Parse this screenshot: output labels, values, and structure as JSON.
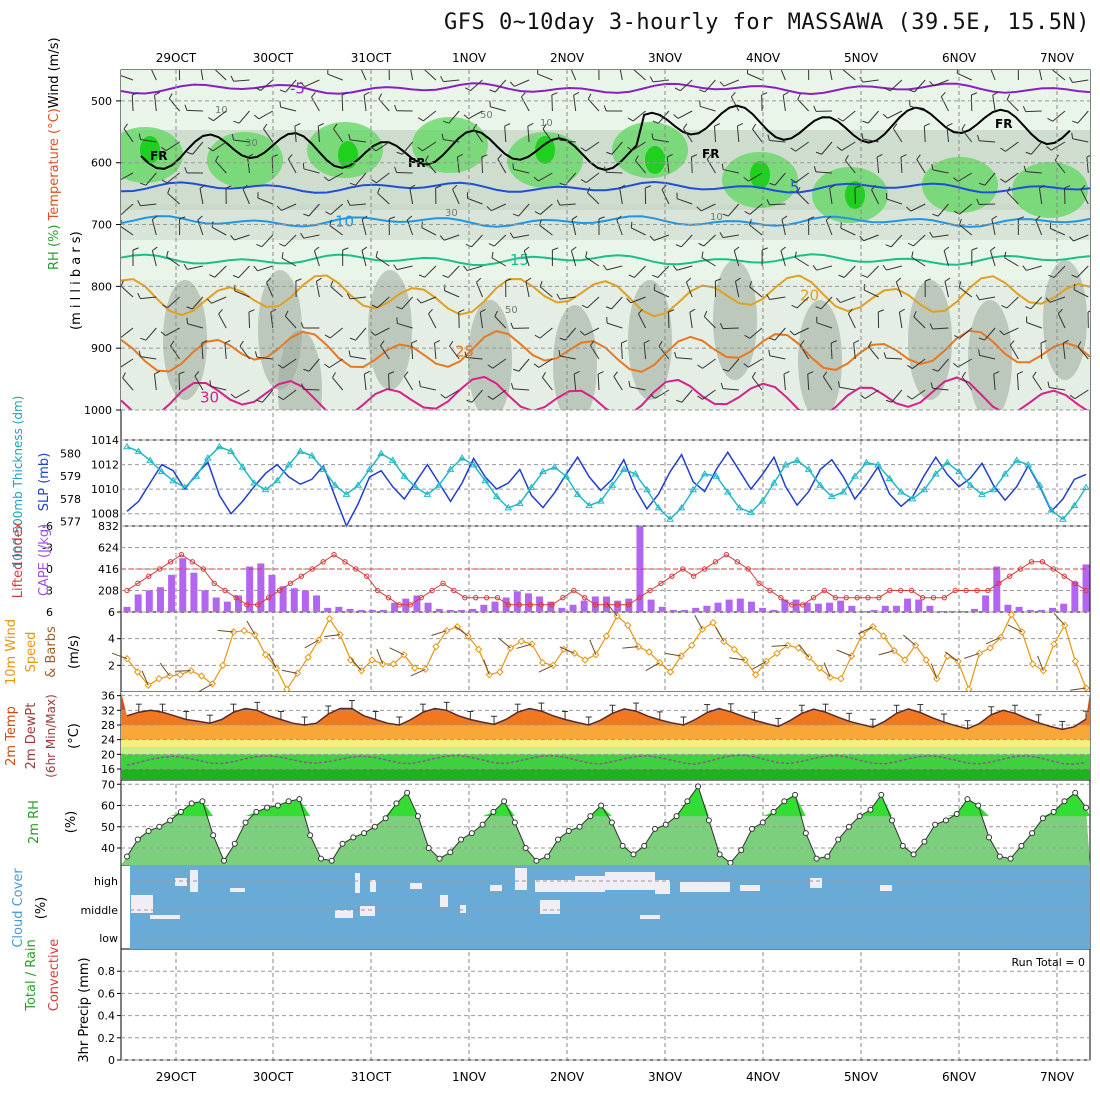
{
  "title": "GFS 0~10day 3-hourly for MASSAWA (39.5E, 15.5N)",
  "dates": [
    "29OCT",
    "30OCT",
    "31OCT",
    "1NOV",
    "2NOV",
    "3NOV",
    "4NOV",
    "5NOV",
    "6NOV",
    "7NOV"
  ],
  "colors": {
    "frame": "#000000",
    "grid": "#999999"
  },
  "chart_data": [
    {
      "type": "heatmap",
      "panel": "profile",
      "ylabel_parts": [
        "RH (%)",
        "Temperature (°C)",
        "Wind (m/s)"
      ],
      "ylabel_units": "(m i l l i b a r s)",
      "yticks": [
        500,
        600,
        700,
        800,
        900,
        1000
      ],
      "ylim": [
        450,
        1000
      ],
      "isotherms": [
        {
          "label": "-5",
          "level": 480,
          "color": "#8a1fc4"
        },
        {
          "label": "5",
          "level": 640,
          "color": "#1f4fd6"
        },
        {
          "label": "10",
          "level": 695,
          "color": "#2196e6"
        },
        {
          "label": "15",
          "level": 757,
          "color": "#1bbf8a"
        },
        {
          "label": "20",
          "level": 815,
          "color": "#e0a020"
        },
        {
          "label": "25",
          "level": 905,
          "color": "#e87820"
        },
        {
          "label": "30",
          "level": 980,
          "color": "#d6218a"
        }
      ],
      "freezing_label": "FR",
      "rh_labels": [
        "10",
        "30",
        "50"
      ]
    },
    {
      "type": "line",
      "panel": "slp_thickness",
      "ylabel_left": "1000-500mb Thickness (dm)",
      "ylabel_right": "SLP (mb)",
      "thickness_ticks": [
        577,
        578,
        579,
        580
      ],
      "slp_ticks": [
        1008,
        1010,
        1012,
        1014
      ],
      "series": [
        {
          "name": "SLP (mb)",
          "color": "#1f3fcf",
          "values": [
            1008.2,
            1009,
            1010.5,
            1012,
            1011.5,
            1010,
            1011.2,
            1012.2,
            1009.5,
            1008,
            1009,
            1010.2,
            1011.3,
            1012,
            1011,
            1010.4,
            1010.8,
            1011.9,
            1009.4,
            1007,
            1008.8,
            1011,
            1011.5,
            1010.2,
            1009.2,
            1010.6,
            1012,
            1010.5,
            1009,
            1010.5,
            1012.5,
            1011,
            1010,
            1010.5,
            1011.6,
            1009.5,
            1008.5,
            1009.7,
            1011.2,
            1012.6,
            1011,
            1009.9,
            1010.8,
            1012.4,
            1010,
            1008.4,
            1009.6,
            1011.4,
            1012.8,
            1010.6,
            1009.8,
            1011.6,
            1013,
            1011.5,
            1010,
            1011.2,
            1012.6,
            1010.2,
            1008.7,
            1009.8,
            1011.6,
            1012.4,
            1011,
            1009.2,
            1010.4,
            1011.8,
            1009.6,
            1008.6,
            1009.4,
            1011.1,
            1012.6,
            1011.2,
            1010.2,
            1010.9,
            1012.1,
            1010.3,
            1009.1,
            1010.2,
            1011.9,
            1010.2,
            1008.2,
            1009.2,
            1010.8,
            1011.2
          ]
        },
        {
          "name": "1000-500mb Thickness (dm)",
          "color": "#20b8c8",
          "axis": "thickness",
          "values": [
            580.3,
            580.1,
            579.7,
            579.2,
            578.8,
            578.5,
            579,
            579.8,
            580.3,
            580.1,
            579.4,
            578.7,
            578.4,
            578.8,
            579.5,
            580.1,
            579.9,
            579.3,
            578.6,
            578.2,
            578.6,
            579.3,
            580,
            579.7,
            579,
            578.5,
            578.2,
            578.6,
            579.3,
            579.8,
            579.5,
            578.8,
            578.1,
            577.6,
            577.8,
            578.5,
            579.2,
            579.4,
            579,
            578.2,
            577.7,
            577.9,
            578.6,
            579.3,
            579.1,
            578.4,
            577.6,
            577.1,
            577.6,
            578.4,
            579.1,
            579,
            578.3,
            577.6,
            577.4,
            577.9,
            578.7,
            579.5,
            579.7,
            579.3,
            578.6,
            578.1,
            578.3,
            579,
            579.6,
            579.5,
            578.9,
            578.3,
            578,
            578.4,
            579.1,
            579.6,
            579.2,
            578.6,
            578.2,
            578.4,
            579.1,
            579.7,
            579.5,
            578.6,
            577.5,
            577.1,
            577.7,
            578.5
          ]
        }
      ]
    },
    {
      "type": "bar",
      "panel": "cape_li",
      "ylabel_left": "Lifted Index",
      "ylabel_right": "CAPE (J/kg)",
      "li_ticks": [
        -6,
        -3,
        0,
        3,
        6
      ],
      "cape_ticks": [
        208,
        416,
        624,
        832
      ],
      "series": [
        {
          "name": "CAPE (J/kg)",
          "color": "#b266f0",
          "values": [
            50,
            170,
            210,
            240,
            360,
            520,
            380,
            210,
            140,
            100,
            160,
            440,
            470,
            360,
            250,
            230,
            210,
            160,
            40,
            50,
            30,
            20,
            20,
            20,
            90,
            130,
            160,
            90,
            30,
            20,
            20,
            30,
            70,
            100,
            140,
            200,
            180,
            150,
            100,
            40,
            70,
            110,
            150,
            150,
            110,
            130,
            830,
            120,
            50,
            20,
            20,
            40,
            60,
            90,
            120,
            130,
            100,
            40,
            20,
            120,
            120,
            90,
            80,
            90,
            110,
            60,
            10,
            20,
            60,
            60,
            130,
            120,
            60,
            10,
            10,
            10,
            30,
            160,
            440,
            70,
            50,
            20,
            20,
            40,
            80,
            290,
            460
          ]
        },
        {
          "name": "Lifted Index",
          "color": "#d93a3a",
          "values": [
            3,
            2,
            1,
            0,
            -1,
            -2,
            -1,
            0,
            2,
            3,
            4,
            5,
            5,
            4,
            3,
            2,
            1,
            0,
            -1,
            -2,
            -1,
            0,
            1,
            3,
            4,
            5,
            5,
            4,
            3,
            2,
            3,
            4,
            4,
            4,
            4,
            5,
            5,
            5,
            5,
            5,
            4,
            3,
            4,
            5,
            5,
            5,
            5,
            4,
            3,
            2,
            1,
            0,
            1,
            0,
            -1,
            -2,
            -1,
            0,
            2,
            3,
            4,
            5,
            5,
            4,
            3,
            4,
            4,
            4,
            4,
            4,
            3,
            3,
            3,
            4,
            4,
            4,
            3,
            3,
            3,
            3,
            2,
            1,
            0,
            -1,
            -1,
            0,
            1,
            2,
            3
          ]
        }
      ]
    },
    {
      "type": "line",
      "panel": "wind10m",
      "ylabel_parts": [
        "10m Wind",
        "Speed",
        "& Barbs"
      ],
      "ylabel_units": "(m/s)",
      "yticks": [
        2,
        4,
        6
      ],
      "ylim": [
        0,
        6
      ],
      "series": [
        {
          "name": "10m Wind Speed (m/s)",
          "color": "#e6960f",
          "values": [
            2.5,
            1.5,
            0.5,
            1,
            1.2,
            1.3,
            1.6,
            1.2,
            0.6,
            2,
            4.5,
            4.6,
            4.3,
            2.8,
            1.8,
            0.2,
            1.4,
            2.6,
            3.9,
            5.5,
            4.3,
            2.4,
            1.6,
            2.4,
            2.1,
            2.1,
            2.8,
            1.8,
            1.7,
            3.4,
            4.6,
            4.9,
            4.2,
            3.2,
            1.3,
            1.5,
            3.3,
            3.8,
            3.6,
            2.2,
            2,
            3.2,
            2.9,
            2.4,
            2.8,
            4.2,
            5.7,
            5,
            3.4,
            3,
            2.2,
            1.5,
            2.7,
            3.5,
            4.7,
            5.2,
            3.8,
            3.2,
            2.4,
            1.3,
            2.3,
            2.9,
            3.5,
            3.3,
            2.6,
            1.8,
            1.1,
            1,
            2.7,
            4.3,
            4.9,
            4.2,
            3.1,
            2.4,
            3.5,
            2.4,
            1,
            2.7,
            2.3,
            0.2,
            2.9,
            3.3,
            4.1,
            5.8,
            4.5,
            2.1,
            1.6,
            3.6,
            5,
            2.3,
            0.3
          ]
        }
      ]
    },
    {
      "type": "line",
      "panel": "temp2m",
      "ylabel_parts": [
        "2m Temp",
        "2m DewPt",
        "(6hr Min/Max)"
      ],
      "ylabel_units": "(°C)",
      "yticks": [
        16,
        20,
        24,
        28,
        32,
        36
      ],
      "ylim": [
        13,
        37
      ],
      "series": [
        {
          "name": "2m Temp (°C)",
          "color": "#5a2a2a",
          "values": [
            30.5,
            31.5,
            32,
            31.5,
            30.5,
            29.5,
            29,
            28.5,
            29.5,
            31.5,
            32.5,
            32,
            30.5,
            29.5,
            28.5,
            28,
            28.5,
            31,
            32.5,
            32.5,
            30.5,
            29.5,
            28.5,
            28,
            29.5,
            31.5,
            32.5,
            32,
            30.5,
            29.5,
            28.8,
            28.2,
            29.5,
            31.5,
            32.5,
            31.8,
            30.5,
            29.5,
            28.7,
            28,
            29.3,
            31.2,
            32.4,
            31.8,
            30.4,
            29.4,
            28.6,
            28,
            29.5,
            31.4,
            32.5,
            31.6,
            30.4,
            29.3,
            28.4,
            27.6,
            29.2,
            31.2,
            32.3,
            31.5,
            30.2,
            29,
            28.2,
            27.4,
            29,
            31.2,
            32.4,
            31.4,
            30,
            28.8,
            27.8,
            27,
            28.4,
            30.8,
            32,
            31.2,
            29.8,
            28.6,
            27.6,
            26.8,
            27.5,
            29.6
          ]
        },
        {
          "name": "2m DewPt (°C)",
          "color": "#8a5a8a",
          "values": [
            17,
            17.8,
            18.6,
            19.2,
            19.5,
            19,
            18.4,
            17.6,
            17.5,
            18,
            18.8,
            19.4,
            19.6,
            19.2,
            18.5,
            17.8,
            17.6,
            18,
            18.6,
            19.3,
            19.5,
            19.1,
            18.4,
            17.6,
            17.5,
            18.1,
            18.9,
            19.5,
            19.7,
            19.2,
            18.5,
            17.7,
            17.5,
            18.1,
            18.9,
            19.5,
            19.6,
            19.2,
            18.4,
            17.6,
            17.4,
            18,
            18.8,
            19.4,
            19.6,
            19.1,
            18.4,
            17.6,
            17.3,
            18,
            18.9,
            19.6,
            19.8,
            19.3,
            18.5,
            17.7,
            17.5,
            18.1,
            18.9,
            19.5,
            19.7,
            19.1,
            18.3,
            17.6,
            17.4,
            18,
            18.8,
            19.4,
            19.6,
            19.1,
            18.4,
            17.6,
            17.4,
            17.9,
            18.7,
            19.4,
            19.6,
            19.1,
            18.3,
            17.5,
            17.3,
            17.8
          ]
        }
      ]
    },
    {
      "type": "area",
      "panel": "rh2m",
      "ylabel": "2m RH",
      "ylabel_units": "(%)",
      "yticks": [
        40,
        50,
        60,
        70
      ],
      "ylim": [
        32,
        72
      ],
      "series": [
        {
          "name": "2m RH (%)",
          "color": "#33cc33",
          "values": [
            36,
            44,
            48,
            50,
            53,
            57,
            61,
            62,
            46,
            34,
            42,
            52,
            57,
            59,
            60,
            62,
            63,
            46,
            35,
            34,
            42,
            45,
            47,
            50,
            54,
            61,
            66,
            55,
            40,
            35,
            38,
            44,
            47,
            51,
            57,
            62,
            52,
            40,
            34,
            36,
            44,
            48,
            50,
            55,
            60,
            52,
            41,
            37,
            41,
            49,
            51,
            55,
            62,
            69,
            53,
            37,
            33,
            39,
            49,
            52,
            57,
            62,
            65,
            47,
            35,
            36,
            44,
            50,
            55,
            58,
            65,
            53,
            41,
            37,
            43,
            51,
            53,
            56,
            63,
            60,
            45,
            36,
            35,
            41,
            47,
            54,
            57,
            62,
            66,
            59
          ]
        }
      ]
    },
    {
      "type": "area",
      "panel": "cloud",
      "ylabel": "Cloud Cover",
      "ylabel_units": "(%)",
      "layers": [
        "high",
        "middle",
        "low"
      ],
      "colors": {
        "sky": "#6aaad6",
        "cloud": "#f0eef4"
      }
    },
    {
      "type": "bar",
      "panel": "precip",
      "ylabel_parts": [
        "Total / Rain",
        "Convective"
      ],
      "ylabel_units": "3hr Precip (mm)",
      "yticks": [
        0,
        0.2,
        0.4,
        0.6,
        0.8
      ],
      "ylim": [
        0,
        1
      ],
      "run_total": "Run Total = 0",
      "values": []
    }
  ]
}
